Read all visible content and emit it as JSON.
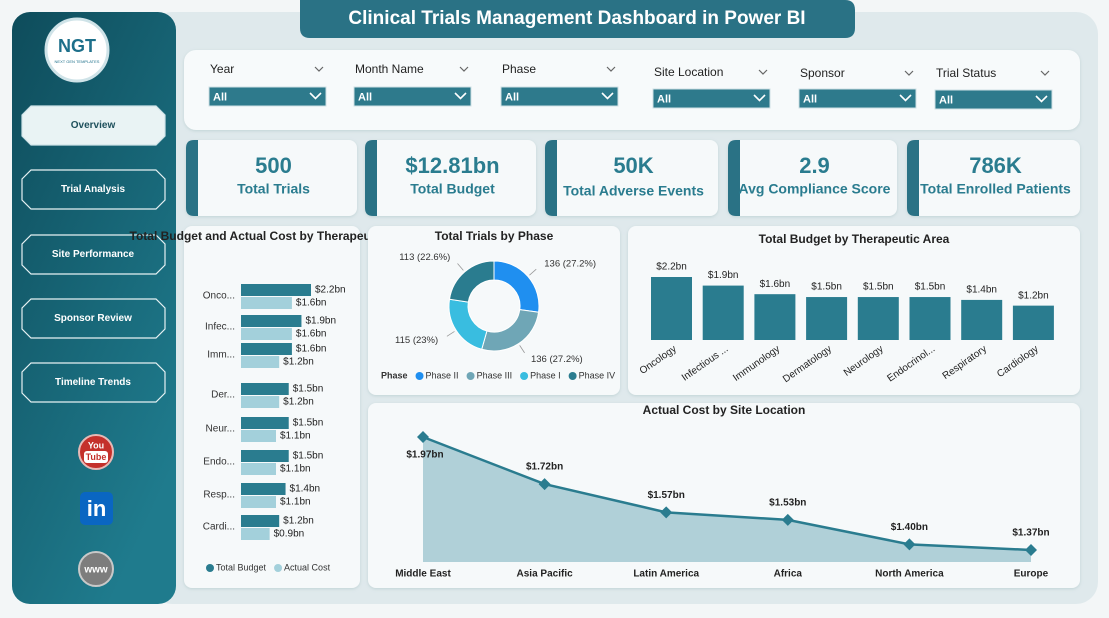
{
  "header": {
    "title": "Clinical Trials Management Dashboard in Power BI"
  },
  "logo": {
    "text": "NGT",
    "subtitle": "NEXT GEN TEMPLATES"
  },
  "nav": {
    "items": [
      "Overview",
      "Trial Analysis",
      "Site Performance",
      "Sponsor Review",
      "Timeline Trends"
    ],
    "active": 0
  },
  "social": {
    "youtube": [
      "You",
      "Tube"
    ],
    "linkedin": "in",
    "web": "www"
  },
  "filters": [
    {
      "label": "Year",
      "value": "All"
    },
    {
      "label": "Month Name",
      "value": "All"
    },
    {
      "label": "Phase",
      "value": "All"
    },
    {
      "label": "Site Location",
      "value": "All"
    },
    {
      "label": "Sponsor",
      "value": "All"
    },
    {
      "label": "Trial Status",
      "value": "All"
    }
  ],
  "kpis": [
    {
      "value": "500",
      "label": "Total Trials"
    },
    {
      "value": "$12.81bn",
      "label": "Total Budget"
    },
    {
      "value": "50K",
      "label": "Total Adverse Events"
    },
    {
      "value": "2.9",
      "label": "Avg Compliance Score"
    },
    {
      "value": "786K",
      "label": "Total Enrolled Patients"
    }
  ],
  "chart_data": [
    {
      "type": "hbar",
      "title": "Total Budget and Actual Cost by Therapeutic Area",
      "categories": [
        "Onco...",
        "Infec...",
        "Imm...",
        "Der...",
        "Neur...",
        "Endo...",
        "Resp...",
        "Cardi..."
      ],
      "series": [
        {
          "name": "Total Budget",
          "color": "#2a7c8f",
          "values": [
            2.2,
            1.9,
            1.6,
            1.5,
            1.5,
            1.5,
            1.4,
            1.2
          ],
          "value_labels": [
            "$2.2bn",
            "$1.9bn",
            "$1.6bn",
            "$1.5bn",
            "$1.5bn",
            "$1.5bn",
            "$1.4bn",
            "$1.2bn"
          ]
        },
        {
          "name": "Actual Cost",
          "color": "#a3d0db",
          "values": [
            1.6,
            1.6,
            1.2,
            1.2,
            1.1,
            1.1,
            1.1,
            0.9
          ],
          "value_labels": [
            "$1.6bn",
            "$1.6bn",
            "$1.2bn",
            "$1.2bn",
            "$1.1bn",
            "$1.1bn",
            "$1.1bn",
            "$0.9bn"
          ]
        }
      ],
      "legend": "bottom"
    },
    {
      "type": "donut",
      "title": "Total Trials by Phase",
      "legend_title": "Phase",
      "categories": [
        "Phase II",
        "Phase III",
        "Phase I",
        "Phase IV"
      ],
      "values": [
        136,
        136,
        115,
        113
      ],
      "value_labels": [
        "136 (27.2%)",
        "136 (27.2%)",
        "115 (23%)",
        "113 (22.6%)"
      ],
      "colors": [
        "#1f8ff0",
        "#6fa6b6",
        "#39bde0",
        "#2a7c8f"
      ],
      "legend": "bottom"
    },
    {
      "type": "bar",
      "title": "Total Budget by Therapeutic Area",
      "categories": [
        "Oncology",
        "Infectious ...",
        "Immunology",
        "Dermatology",
        "Neurology",
        "Endocrinol...",
        "Respiratory",
        "Cardiology"
      ],
      "values": [
        2.2,
        1.9,
        1.6,
        1.5,
        1.5,
        1.5,
        1.4,
        1.2
      ],
      "value_labels": [
        "$2.2bn",
        "$1.9bn",
        "$1.6bn",
        "$1.5bn",
        "$1.5bn",
        "$1.5bn",
        "$1.4bn",
        "$1.2bn"
      ],
      "color": "#2a7c8f"
    },
    {
      "type": "area",
      "title": "Actual Cost by Site Location",
      "categories": [
        "Middle East",
        "Asia Pacific",
        "Latin America",
        "Africa",
        "North America",
        "Europe"
      ],
      "values": [
        1.97,
        1.72,
        1.57,
        1.53,
        1.4,
        1.37
      ],
      "value_labels": [
        "$1.97bn",
        "$1.72bn",
        "$1.57bn",
        "$1.53bn",
        "$1.40bn",
        "$1.37bn"
      ],
      "color": "#2a7c8f"
    }
  ]
}
